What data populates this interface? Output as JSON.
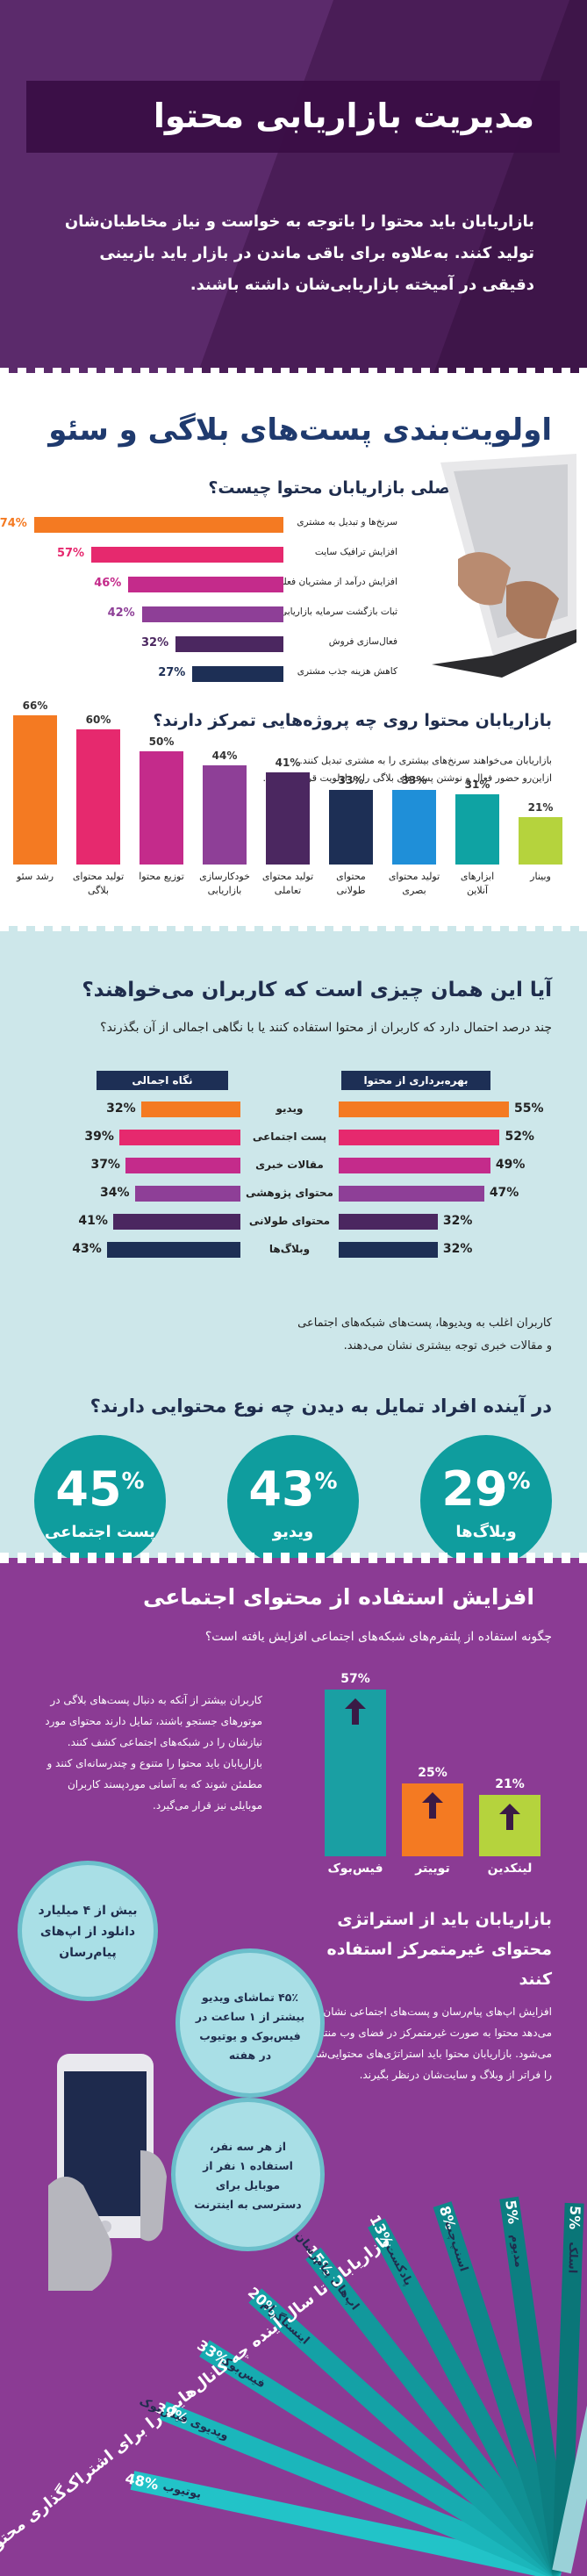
{
  "hero": {
    "title": "مدیریت بازاریابی محتوا",
    "intro": "بازاریابان باید محتوا را باتوجه به خواست و نیاز مخاطبان‌شان تولید کنند. به‌علاوه برای باقی ماندن در بازار باید بازبینی دقیقی در آمیخته بازاریابی‌شان داشته باشند."
  },
  "section2": {
    "heading": "اولویت‌بندی پست‌های بلاگی و سئو",
    "q1": "اولویت‌های اصلی بازاریابان محتوا چیست؟",
    "q2": "بازاریابان محتوا روی چه پروژه‌هایی تمرکز دارند؟",
    "note1": "بازاریابان می‌خواهند سرنخ‌های بیشتری را به مشتری تبدیل کنند.",
    "note2": "ازاین‌رو حضور فعال و نوشتن پست‌های بلاگی را در اولویت قرار می‌دهند."
  },
  "section3": {
    "heading": "آیا این همان چیزی است که کاربران می‌خواهند؟",
    "sub": "چند درصد احتمال دارد که کاربران از محتوا استفاده کنند یا با نگاهی اجمالی از آن بگذرند؟",
    "tag_use": "بهره‌برداری از محتوا",
    "tag_glance": "نگاه اجمالی",
    "note1": "کاربران اغلب به ویدیوها، پست‌های شبکه‌های اجتماعی",
    "note2": "و مقالات خبری توجه بیشتری نشان می‌دهند.",
    "q": "در آینده افراد تمایل به دیدن چه نوع محتوایی دارند؟",
    "circles": [
      {
        "value": "29",
        "label": "وبلاگ‌ها"
      },
      {
        "value": "43",
        "label": "ویدیو"
      },
      {
        "value": "45",
        "label": "پست اجتماعی"
      }
    ],
    "percent_sign": "%"
  },
  "section4": {
    "heading": "افزایش استفاده از محتوای اجتماعی",
    "sub": "چگونه استفاده از پلتفرم‌های شبکه‌های اجتماعی افزایش یافته است؟",
    "text": "کاربران بیشتر از آنکه به دنبال پست‌های بلاگی در موتورهای جستجو باشند، تمایل دارند محتوای مورد نیازشان را در شبکه‌های اجتماعی کشف کنند. بازاریابان باید محتوا را متنوع و چندرسانه‌ای کنند و مطمئن شوند که به آسانی موردپسند کاربران موبایلی نیز قرار می‌گیرد.",
    "h3": "بازاریابان باید از استراتژی محتوای غیرمتمرکز استفاده کنند",
    "text2": "افزایش اپ‌های پیام‌رسان و پست‌های اجتماعی نشان می‌دهد محتوا به صورت غیرمتمرکز در فضای وب منتشر می‌شود. بازاریابان محتوا باید استراتژی‌های محتوایی‌شان را فراتر از وبلاگ و سایت‌شان درنظر بگیرند.",
    "bubble1": "بیش از ۴ میلیارد دانلود از اپ‌های پیام‌رسان",
    "bubble2": "۴۵٪ تماشای ویدیو بیشتر از ۱ ساعت در فیس‌بوک و یوتیوب در هفته",
    "bubble3": "از هر سه نفر، استفاده ۱ نفر از موبایل برای دسترسی به اینترنت",
    "fan_title": "بازاریابان تا سال آینده چه کانال‌هایی را برای اشتراک‌گذاری محتوا اضافه خواهند کرد؟"
  },
  "chart_data": [
    {
      "type": "bar",
      "title": "اولویت‌های اصلی بازاریابان محتوا چیست؟",
      "orientation": "horizontal",
      "categories": [
        "سرنخ‌ها و تبدیل به مشتری",
        "افزایش ترافیک سایت",
        "افزایش درآمد از مشتریان فعلی",
        "ثبات بازگشت سرمایه بازاریابی",
        "فعال‌سازی فروش",
        "کاهش هزینه جذب مشتری"
      ],
      "values": [
        74,
        57,
        46,
        42,
        32,
        27
      ],
      "labels": [
        "74%",
        "57%",
        "46%",
        "42%",
        "32%",
        "27%"
      ],
      "colors": [
        "#f47a22",
        "#e6296e",
        "#c42b8b",
        "#8e3f97",
        "#4b2760",
        "#1d2f55"
      ]
    },
    {
      "type": "bar",
      "title": "بازاریابان محتوا روی چه پروژه‌هایی تمرکز دارند؟",
      "orientation": "vertical",
      "categories": [
        "رشد سئو",
        "تولید محتوای بلاگی",
        "توزیع محتوا",
        "خودکارسازی بازاریابی",
        "تولید محتوای تعاملی",
        "محتوای طولانی",
        "تولید محتوای بصری",
        "ابزارهای آنلاین",
        "وبینار"
      ],
      "values": [
        66,
        60,
        50,
        44,
        41,
        33,
        33,
        31,
        21
      ],
      "labels": [
        "66%",
        "60%",
        "50%",
        "44%",
        "41%",
        "33%",
        "33%",
        "31%",
        "21%"
      ],
      "colors": [
        "#f47a22",
        "#e6296e",
        "#c42b8b",
        "#8e3f97",
        "#4b2760",
        "#1d2f55",
        "#1f8fd8",
        "#0fa3a3",
        "#b5d33d"
      ],
      "ylim": [
        0,
        70
      ]
    },
    {
      "type": "bar",
      "title": "آیا این همان چیزی است که کاربران می‌خواهند؟",
      "orientation": "horizontal-diverging",
      "categories": [
        "ویدیو",
        "پست اجتماعی",
        "مقالات خبری",
        "محتوای پژوهشی",
        "محتوای طولانی",
        "وبلاگ‌ها"
      ],
      "series": [
        {
          "name": "بهره‌برداری از محتوا",
          "values": [
            55,
            52,
            49,
            47,
            32,
            32
          ],
          "labels": [
            "55%",
            "52%",
            "49%",
            "47%",
            "32%",
            "32%"
          ]
        },
        {
          "name": "نگاه اجمالی",
          "values": [
            32,
            39,
            37,
            34,
            41,
            43
          ],
          "labels": [
            "32%",
            "39%",
            "37%",
            "34%",
            "41%",
            "43%"
          ]
        }
      ],
      "colors": [
        "#f47a22",
        "#e6296e",
        "#c42b8b",
        "#8e3f97",
        "#4b2760",
        "#1d2f55"
      ]
    },
    {
      "type": "bar",
      "title": "چگونه استفاده از پلتفرم‌های شبکه‌های اجتماعی افزایش یافته است؟",
      "orientation": "vertical",
      "categories": [
        "فیس‌بوک",
        "توییتر",
        "لینکدین"
      ],
      "values": [
        57,
        25,
        21
      ],
      "labels": [
        "57%",
        "25%",
        "21%"
      ],
      "colors": [
        "#1a9fa3",
        "#f47a22",
        "#b5d33d"
      ],
      "ylim": [
        0,
        60
      ]
    },
    {
      "type": "bar",
      "title": "بازاریابان تا سال آینده چه کانال‌هایی را برای اشتراک‌گذاری محتوا اضافه خواهند کرد؟",
      "orientation": "fan",
      "categories": [
        "یوتیوب",
        "ویدیوی فیس‌بوک",
        "فیس‌بوک",
        "اینستاگرام",
        "اپ‌های پیام‌رسان",
        "پادکست",
        "اسنپ‌چت",
        "مدیوم",
        "اسلک",
        "به هیچ مورد بالا"
      ],
      "values": [
        48,
        39,
        33,
        20,
        15,
        13,
        8,
        5,
        5,
        22
      ],
      "labels": [
        "48%",
        "39%",
        "33%",
        "20%",
        "15%",
        "13%",
        "8%",
        "5%",
        "5%",
        "22%"
      ]
    }
  ]
}
